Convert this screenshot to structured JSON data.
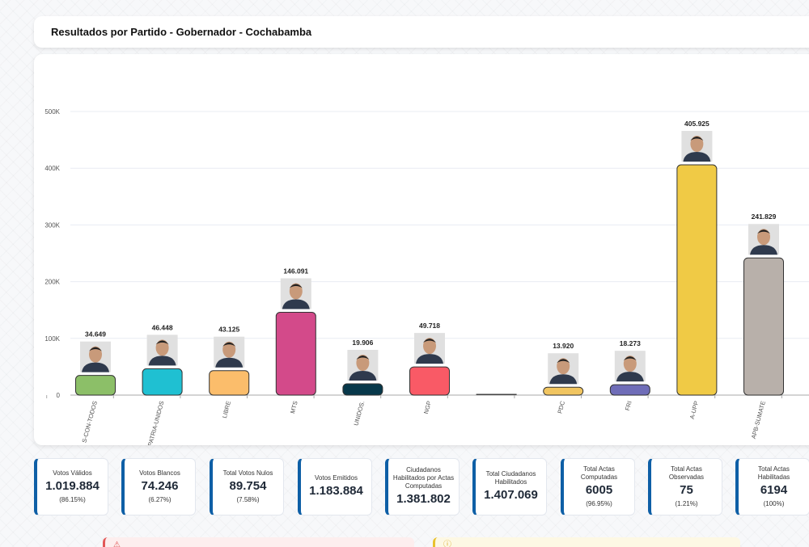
{
  "header": {
    "title": "Resultados por Partido - Gobernador - Cochabamba"
  },
  "chart_data": {
    "type": "bar",
    "title": "Resultados por Partido - Gobernador - Cochabamba",
    "xlabel": "",
    "ylabel": "",
    "ylim": [
      0,
      500000
    ],
    "yticks": [
      0,
      100000,
      200000,
      300000,
      400000,
      500000
    ],
    "ytick_labels": [
      "0",
      "100K",
      "200K",
      "300K",
      "400K",
      "500K"
    ],
    "grid": true,
    "categories": [
      "S-CON-TODOS",
      "PATRIA-UNIDOS",
      "LIBRE",
      "MTS",
      "UNIDOS.",
      "NGP",
      "",
      "PDC",
      "FRI",
      "A-UPP",
      "APB-SUMATE"
    ],
    "values": [
      34649,
      46448,
      43125,
      146091,
      19906,
      49718,
      0,
      13920,
      18273,
      405925,
      241829
    ],
    "value_labels": [
      "34.649",
      "46.448",
      "43.125",
      "146.091",
      "19.906",
      "49.718",
      "",
      "13.920",
      "18.273",
      "405.925",
      "241.829"
    ],
    "colors": [
      "#8cbf68",
      "#1fc0d2",
      "#fbbd6b",
      "#d34a8a",
      "#07384a",
      "#f95a66",
      "#444444",
      "#f1c560",
      "#6f6db8",
      "#f0ca45",
      "#b8b0aa"
    ],
    "candidate_photo": [
      true,
      true,
      true,
      true,
      true,
      true,
      false,
      true,
      true,
      true,
      true
    ]
  },
  "stats": [
    {
      "label": "Votos Válidos",
      "value": "1.019.884",
      "pct": "(86.15%)"
    },
    {
      "label": "Votos Blancos",
      "value": "74.246",
      "pct": "(6.27%)"
    },
    {
      "label": "Total Votos Nulos",
      "value": "89.754",
      "pct": "(7.58%)"
    },
    {
      "label": "Votos Emitidos",
      "value": "1.183.884",
      "pct": null
    },
    {
      "label": "Ciudadanos Habilitados por Actas Computadas",
      "value": "1.381.802",
      "pct": null
    },
    {
      "label": "Total Ciudadanos Habilitados",
      "value": "1.407.069",
      "pct": null
    },
    {
      "label": "Total Actas Computadas",
      "value": "6005",
      "pct": "(96.95%)"
    },
    {
      "label": "Total Actas Observadas",
      "value": "75",
      "pct": "(1.21%)"
    },
    {
      "label": "Total Actas Habilitadas",
      "value": "6194",
      "pct": "(100%)"
    }
  ],
  "alerts": [
    {
      "icon": "warning-triangle-icon",
      "glyph": "⚠",
      "color": "#e25757"
    },
    {
      "icon": "info-circle-icon",
      "glyph": "ⓘ",
      "color": "#d9a81c"
    }
  ],
  "accent": "#0e5fa6"
}
